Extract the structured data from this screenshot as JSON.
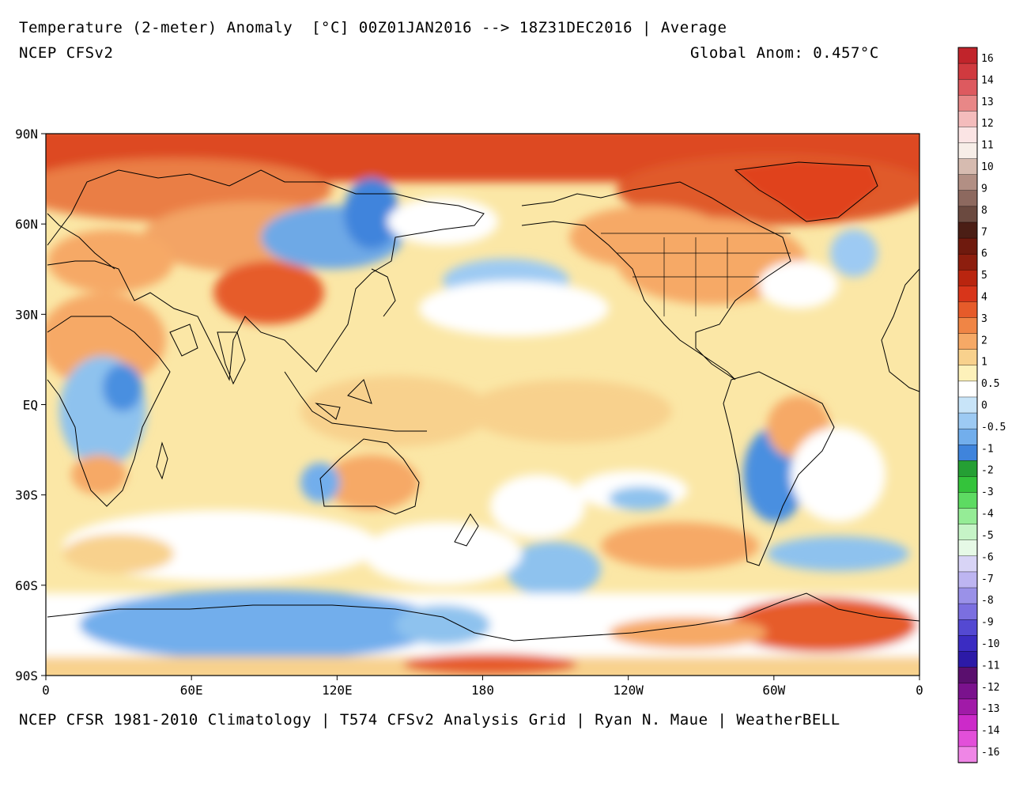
{
  "header": {
    "title": "Temperature (2-meter) Anomaly  [°C] 00Z01JAN2016 --> 18Z31DEC2016 | Average",
    "model": "NCEP CFSv2",
    "global_anomaly": "Global Anom: 0.457°C"
  },
  "footer": {
    "credits": "NCEP CFSR 1981-2010 Climatology | T574 CFSv2 Analysis Grid | Ryan N. Maue | WeatherBELL"
  },
  "map": {
    "lat_labels": [
      "90N",
      "60N",
      "30N",
      "EQ",
      "30S",
      "60S",
      "90S"
    ],
    "lon_labels": [
      "0",
      "60E",
      "120E",
      "180",
      "120W",
      "60W",
      "0"
    ],
    "colors": {
      "ocean_base": "#fbe7a6",
      "warm": "#f7b06a",
      "hot": "#e0431f",
      "cool": "#8ec2ee",
      "cold": "#4a8fe0",
      "neutral": "#ffffff",
      "coast": "#000000"
    }
  },
  "colorbar": {
    "labels": [
      "16",
      "14",
      "13",
      "12",
      "11",
      "10",
      "9",
      "8",
      "7",
      "6",
      "5",
      "4",
      "3",
      "2",
      "1",
      "0.5",
      "0",
      "-0.5",
      "-1",
      "-2",
      "-3",
      "-4",
      "-5",
      "-6",
      "-7",
      "-8",
      "-9",
      "-10",
      "-11",
      "-12",
      "-13",
      "-14",
      "-16"
    ],
    "colors": [
      "#c1242b",
      "#d03a3f",
      "#dd5a5f",
      "#e88787",
      "#f4bcbc",
      "#fbe4e4",
      "#f7eee8",
      "#d6bbb0",
      "#b28f84",
      "#8d695f",
      "#6b4a40",
      "#4b1e15",
      "#6f1a0e",
      "#8d1e0e",
      "#b9250f",
      "#d8351a",
      "#e65b2a",
      "#f08545",
      "#f6a966",
      "#f8d18d",
      "#fdf1ba",
      "#ffffff",
      "#c8e4f8",
      "#9dcaf3",
      "#72aeec",
      "#3f84dc",
      "#259f34",
      "#34c33b",
      "#5ddb62",
      "#95ec96",
      "#c6f4c7",
      "#e6f9e6",
      "#d8d4f6",
      "#bdb5f1",
      "#9a91e8",
      "#7b6fe0",
      "#5449d2",
      "#3b2cc2",
      "#2c1aa7",
      "#5a0f6e",
      "#7a128d",
      "#a11aa8",
      "#cc2ac9",
      "#e24fd9",
      "#ef86e6"
    ]
  }
}
